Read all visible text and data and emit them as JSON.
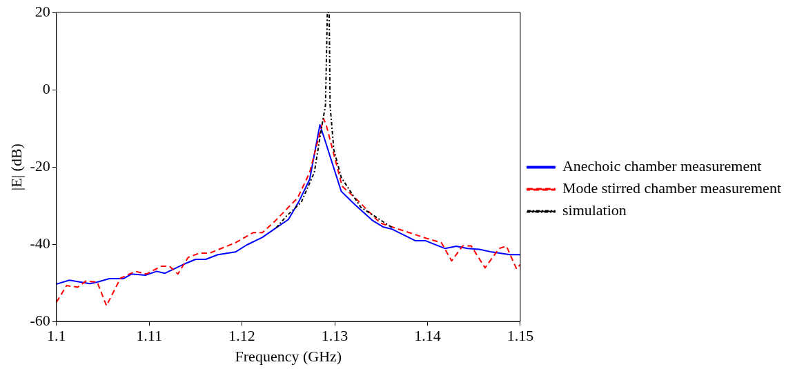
{
  "chart_data": {
    "type": "line",
    "xlabel": "Frequency (GHz)",
    "ylabel": "|E| (dB)",
    "xlim": [
      1.1,
      1.15
    ],
    "xticks": [
      1.1,
      1.11,
      1.12,
      1.13,
      1.14,
      1.15
    ],
    "ylim": [
      -60,
      20
    ],
    "yticks": [
      -60,
      -40,
      -20,
      0,
      20
    ],
    "grid": false,
    "legend": "right",
    "marker": "none",
    "series": [
      {
        "name": "Anechoic chamber measurement",
        "color": "#0000ff",
        "line_style": "solid",
        "x": [
          1.1,
          1.1014,
          1.1036,
          1.1044,
          1.1057,
          1.1072,
          1.1081,
          1.1096,
          1.1108,
          1.1117,
          1.1137,
          1.115,
          1.1161,
          1.1174,
          1.1193,
          1.1205,
          1.1222,
          1.1237,
          1.125,
          1.1261,
          1.1273,
          1.1284,
          1.1288,
          1.1307,
          1.1322,
          1.1341,
          1.1352,
          1.1362,
          1.1387,
          1.1398,
          1.1419,
          1.1431,
          1.1443,
          1.1456,
          1.1469,
          1.1489,
          1.15
        ],
        "values": [
          -50.3,
          -49.3,
          -50.2,
          -49.8,
          -48.9,
          -48.9,
          -47.7,
          -48,
          -47,
          -47.5,
          -45.2,
          -43.9,
          -43.9,
          -42.7,
          -42,
          -40.2,
          -38.2,
          -35.7,
          -33.6,
          -29.1,
          -23.2,
          -9.1,
          -12,
          -26.3,
          -29.8,
          -33.9,
          -35.5,
          -36.1,
          -39.1,
          -39.1,
          -41.1,
          -40.5,
          -41.1,
          -41.3,
          -42,
          -42.7,
          -42.7
        ]
      },
      {
        "name": "Mode stirred chamber measurement",
        "color": "#ff0000",
        "line_style": "dashed",
        "x": [
          1.1,
          1.1011,
          1.1023,
          1.1032,
          1.1044,
          1.1054,
          1.1069,
          1.1085,
          1.1097,
          1.1113,
          1.1122,
          1.1131,
          1.1142,
          1.1154,
          1.1165,
          1.1193,
          1.1212,
          1.1222,
          1.1236,
          1.126,
          1.1273,
          1.1288,
          1.1291,
          1.1308,
          1.1322,
          1.1349,
          1.1364,
          1.1398,
          1.1415,
          1.1426,
          1.1438,
          1.1447,
          1.1462,
          1.1477,
          1.1485,
          1.1496,
          1.15
        ],
        "values": [
          -55,
          -50.7,
          -51.1,
          -49.5,
          -49.8,
          -55.9,
          -48.8,
          -47,
          -47.7,
          -45.7,
          -45.7,
          -47.7,
          -43.4,
          -42.3,
          -42.3,
          -39.6,
          -37,
          -37,
          -33.9,
          -28,
          -21.4,
          -7.5,
          -9.3,
          -25,
          -28,
          -34.5,
          -35.7,
          -38.4,
          -39.6,
          -44.3,
          -40.4,
          -40.4,
          -46.1,
          -41.1,
          -40.5,
          -46.4,
          -45.2
        ]
      },
      {
        "name": "simulation",
        "color": "#000000",
        "line_style": "dashdot",
        "x": [
          1.1237,
          1.1248,
          1.1264,
          1.1278,
          1.1286,
          1.129,
          1.1292,
          1.1294,
          1.1295,
          1.1299,
          1.1307,
          1.1328,
          1.1362
        ],
        "values": [
          -35.7,
          -32.7,
          -29.1,
          -21.4,
          -9.5,
          -4.1,
          20,
          20,
          -4.1,
          -15.5,
          -22.7,
          -30.4,
          -35.7
        ]
      }
    ]
  }
}
